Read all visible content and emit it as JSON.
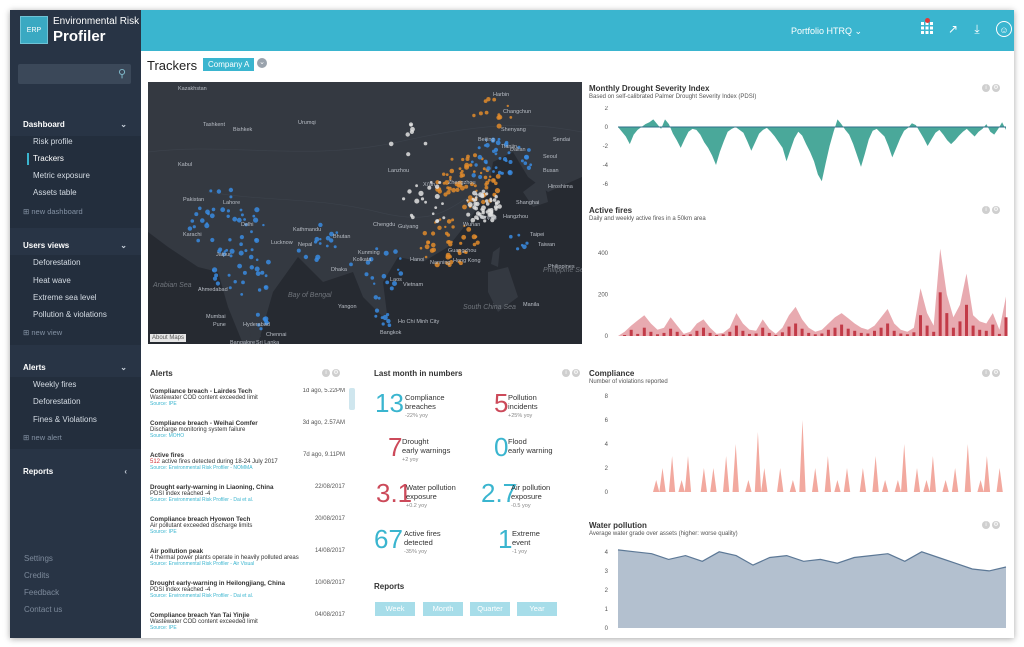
{
  "brand": {
    "logo": "ERP",
    "line1": "Environmental Risk",
    "line2": "Profiler"
  },
  "sidebar": {
    "dashboard": {
      "label": "Dashboard",
      "items": [
        "Risk profile",
        "Trackers",
        "Metric exposure",
        "Assets table"
      ],
      "add": "new dashboard"
    },
    "users_views": {
      "label": "Users views",
      "items": [
        "Deforestation",
        "Heat wave",
        "Extreme sea level",
        "Pollution & violations"
      ],
      "add": "new view"
    },
    "alerts": {
      "label": "Alerts",
      "items": [
        "Weekly fires",
        "Deforestation",
        "Fines & Violations"
      ],
      "add": "new alert"
    },
    "reports": {
      "label": "Reports"
    },
    "footer": [
      "Settings",
      "Credits",
      "Feedback",
      "Contact us"
    ]
  },
  "topbar": {
    "portfolio": "Portfolio HTRQ"
  },
  "page": {
    "title": "Trackers",
    "company": "Company A"
  },
  "map": {
    "about": "About Maps",
    "labels": [
      {
        "t": "Kazakhstan"
      },
      {
        "t": "Urumqi"
      },
      {
        "t": "Harbin"
      },
      {
        "t": "Changchun"
      },
      {
        "t": "Shenyang"
      },
      {
        "t": "Beijing"
      },
      {
        "t": "Tianjin"
      },
      {
        "t": "Seoul"
      },
      {
        "t": "Busan"
      },
      {
        "t": "Dalian"
      },
      {
        "t": "Xi'an"
      },
      {
        "t": "Zhengzhou"
      },
      {
        "t": "Lanzhou"
      },
      {
        "t": "Hiroshima"
      },
      {
        "t": "Nanjing"
      },
      {
        "t": "Shanghai"
      },
      {
        "t": "Chengdu"
      },
      {
        "t": "Hangzhou"
      },
      {
        "t": "Wuhan"
      },
      {
        "t": "Guiyang"
      },
      {
        "t": "Taipei"
      },
      {
        "t": "Kunming"
      },
      {
        "t": "Nanning"
      },
      {
        "t": "Guangzhou"
      },
      {
        "t": "Hong Kong"
      },
      {
        "t": "Taiwan"
      },
      {
        "t": "Hanoi"
      },
      {
        "t": "Karachi"
      },
      {
        "t": "Delhi"
      },
      {
        "t": "Lahore"
      },
      {
        "t": "Jaipur"
      },
      {
        "t": "Lucknow"
      },
      {
        "t": "Kathmandu"
      },
      {
        "t": "Ahmedabad"
      },
      {
        "t": "Kolkata"
      },
      {
        "t": "Mumbai"
      },
      {
        "t": "Hyderabad"
      },
      {
        "t": "Pune"
      },
      {
        "t": "Bangalore"
      },
      {
        "t": "Chennai"
      },
      {
        "t": "Yangon"
      },
      {
        "t": "Bangkok"
      },
      {
        "t": "Manila"
      },
      {
        "t": "Ho Chi Minh City"
      },
      {
        "t": "Sri Lanka"
      },
      {
        "t": "Philippines"
      },
      {
        "t": "Bhutan"
      },
      {
        "t": "Kabul"
      },
      {
        "t": "Tashkent"
      },
      {
        "t": "Bishkek"
      },
      {
        "t": "Vietnam"
      },
      {
        "t": "Laos"
      },
      {
        "t": "Dhaka"
      },
      {
        "t": "Pakistan"
      },
      {
        "t": "Nepal"
      },
      {
        "t": "Sendai"
      }
    ],
    "seas": [
      "Arabian Sea",
      "Bay of Bengal",
      "Philippine Sea",
      "South China Sea"
    ]
  },
  "drought": {
    "title": "Monthly Drought Severity Index",
    "subtitle": "Based on self-calibrated Palmer Drought Severity Index (PDSI)",
    "yticks": [
      "2",
      "0",
      "-2",
      "-4",
      "-6"
    ],
    "color": "#4aa89a"
  },
  "fires": {
    "title": "Active fires",
    "subtitle": "Daily and weekly active fires in a 50km area",
    "yticks": [
      "400",
      "200",
      "0"
    ],
    "color": "#d9727b"
  },
  "alerts_panel": {
    "title": "Alerts",
    "items": [
      {
        "title": "Compliance breach - Lairdes Tech",
        "date": "1d ago, 5.22PM",
        "msg": "Wastewater COD content exceeded limit",
        "src": "Source: IPE"
      },
      {
        "title": "Compliance breach - Weihai Comfer",
        "date": "3d ago, 2.57AM",
        "msg": "Discharge monitoring system failure",
        "src": "Source: MOHO"
      },
      {
        "title": "Active fires",
        "date": "7d ago, 9.11PM",
        "num": "512",
        "msg": " active fires detected during 18-24 July 2017",
        "src": "Source: Environmental Risk Profiler - NOMMA"
      },
      {
        "title": "Drought early-warning in Liaoning, China",
        "date": "22/08/2017",
        "msg": "PDSI index reached -4",
        "src": "Source: Environmental Risk Profiler - Dai et al."
      },
      {
        "title": "Compliance breach  Hyowon Tech",
        "date": "20/08/2017",
        "msg": "Air pollutant exceeded discharge limits",
        "src": "Source: IPE"
      },
      {
        "title": "Air pollution peak",
        "date": "14/08/2017",
        "msg": "4 thermal power plants operate in heavily polluted areas",
        "src": "Source: Environmental Risk Profiler - Air Visual"
      },
      {
        "title": "Drought early-warning in  Heilongjiang, China",
        "date": "10/08/2017",
        "msg": "PDSI index reached -4",
        "src": "Source: Environmental Risk Profiler - Dai et al."
      },
      {
        "title": "Compliance breach  Yan Tai Yinjie",
        "date": "04/08/2017",
        "msg": "Wastewater COD content exceeded limit",
        "src": "Source: IPE"
      }
    ]
  },
  "numbers": {
    "title": "Last month in numbers",
    "stats": [
      {
        "n": "13",
        "l1": "Compliance",
        "l2": "breaches",
        "y": "-22% yoy",
        "c": "teal"
      },
      {
        "n": "5",
        "l1": "Pollution",
        "l2": "incidents",
        "y": "+25% yoy",
        "c": "red"
      },
      {
        "n": "7",
        "l1": "Drought",
        "l2": "early warnings",
        "y": "+2 yoy",
        "c": "red"
      },
      {
        "n": "0",
        "l1": "Flood",
        "l2": "early warning",
        "y": "",
        "c": "teal"
      },
      {
        "n": "3.1",
        "l1": "Water pollution",
        "l2": "exposure",
        "y": "+0.2 yoy",
        "c": "red"
      },
      {
        "n": "2.7",
        "l1": "Air pollution",
        "l2": "exposure",
        "y": "-0.5 yoy",
        "c": "teal"
      },
      {
        "n": "67",
        "l1": "Active fires",
        "l2": "detected",
        "y": "-35% yoy",
        "c": "teal"
      },
      {
        "n": "1",
        "l1": "Extreme",
        "l2": "event",
        "y": "-1 yoy",
        "c": "teal"
      }
    ],
    "reports_title": "Reports",
    "buttons": [
      "Week",
      "Month",
      "Quarter",
      "Year"
    ]
  },
  "compliance": {
    "title": "Compliance",
    "subtitle": "Number of violations reported",
    "yticks": [
      "8",
      "6",
      "4",
      "2",
      "0"
    ],
    "color": "#f2a99f"
  },
  "water": {
    "title": "Water pollution",
    "subtitle": "Average water grade over assets (higher: worse quality)",
    "yticks": [
      "4",
      "3",
      "2",
      "1",
      "0"
    ],
    "color": "#5c7896"
  },
  "chart_data": [
    {
      "type": "area",
      "title": "Monthly Drought Severity Index",
      "ylim": [
        -6,
        2
      ],
      "values": [
        0,
        -0.5,
        -1,
        -1.8,
        -0.8,
        -0.3,
        0,
        0.3,
        0.5,
        0.8,
        0.3,
        -0.2,
        0.8,
        0.3,
        -0.7,
        -1.4,
        -2.2,
        -1.3,
        -0.5,
        -0.2,
        -0.3,
        -0.8,
        -1.6,
        -2.2,
        -3,
        -4,
        -2.6,
        -1.5,
        -0.5,
        -0.2,
        0,
        -0.3,
        -0.6,
        -1.5,
        -2.5,
        -1.6,
        -0.7,
        -0.3,
        -0.1,
        -0.5,
        -1,
        -1.6,
        -2.2,
        -3.6,
        -2.4,
        -1.2,
        -0.5,
        -0.9,
        -1.8,
        -2.6,
        -3.6,
        -5,
        -5.7,
        -3.8,
        -2,
        -0.5,
        0.8,
        0.3,
        -0.3,
        -0.8,
        -1.8,
        -3,
        -4.2,
        -2.8,
        -1.3,
        -0.4,
        -0.2,
        -0.6,
        -1,
        -2,
        -3.2,
        -2.2,
        -1.2,
        -0.4,
        -0.1,
        0.4,
        0.2,
        -0.5,
        -1.2,
        -2,
        -1.3,
        -0.6,
        -0.3,
        -0.8,
        -1.4,
        -1.8,
        -1.4,
        -0.9,
        -0.5,
        -0.2,
        -0.6,
        -1,
        -0.5,
        -0.2,
        0.3,
        -0.5,
        -0.8,
        -0.2,
        0.5,
        -0.3
      ]
    },
    {
      "type": "area",
      "title": "Active fires",
      "ylim": [
        0,
        500
      ],
      "series": [
        {
          "name": "weekly",
          "values": [
            0,
            20,
            50,
            75,
            100,
            60,
            30,
            40,
            90,
            50,
            10,
            20,
            60,
            80,
            40,
            10,
            15,
            40,
            110,
            60,
            30,
            25,
            80,
            35,
            10,
            40,
            100,
            140,
            80,
            40,
            20,
            30,
            60,
            90,
            110,
            85,
            60,
            40,
            30,
            50,
            90,
            130,
            60,
            30,
            20,
            40,
            230,
            110,
            50,
            420,
            200,
            90,
            150,
            300,
            100,
            70,
            60,
            110,
            30,
            190
          ]
        },
        {
          "name": "daily",
          "values": [
            0,
            5,
            30,
            10,
            40,
            20,
            8,
            15,
            35,
            20,
            5,
            8,
            25,
            40,
            15,
            5,
            8,
            20,
            50,
            25,
            10,
            12,
            40,
            15,
            5,
            18,
            45,
            60,
            35,
            15,
            8,
            12,
            30,
            40,
            55,
            35,
            25,
            15,
            12,
            25,
            40,
            60,
            25,
            12,
            8,
            18,
            100,
            50,
            20,
            210,
            110,
            40,
            70,
            150,
            50,
            30,
            25,
            55,
            10,
            90
          ]
        }
      ]
    },
    {
      "type": "area",
      "title": "Compliance",
      "ylim": [
        0,
        8
      ],
      "values": [
        0,
        0,
        0,
        0,
        0,
        0,
        0,
        0,
        0,
        0,
        0,
        0,
        1,
        0,
        2,
        0,
        0,
        3,
        0,
        0,
        1,
        0,
        3,
        0,
        0,
        0,
        0,
        2,
        0,
        0,
        2,
        0,
        0,
        0,
        3,
        0,
        0,
        4,
        0,
        0,
        0,
        1,
        0,
        0,
        5,
        0,
        2,
        0,
        0,
        0,
        0,
        2,
        0,
        0,
        0,
        1,
        0,
        0,
        6,
        0,
        0,
        0,
        2,
        0,
        0,
        0,
        3,
        0,
        0,
        1,
        0,
        0,
        2,
        0,
        0,
        0,
        0,
        2,
        0,
        0,
        0,
        3,
        0,
        0,
        1,
        0,
        0,
        0,
        1,
        0,
        4,
        0,
        0,
        0,
        2,
        0,
        0,
        1,
        0,
        3,
        0,
        0,
        0,
        1,
        0,
        0,
        2,
        0,
        0,
        0,
        4,
        0,
        0,
        0,
        1,
        0,
        3,
        0,
        0,
        0,
        2,
        0,
        0
      ]
    },
    {
      "type": "area",
      "title": "Water pollution",
      "ylim": [
        0,
        4
      ],
      "values": [
        4.1,
        4.0,
        3.9,
        3.6,
        3.8,
        3.5,
        4.0,
        3.8,
        3.3,
        3.7,
        3.8,
        3.5,
        3.6,
        3.4,
        3.7,
        3.8,
        3.9,
        3.5,
        4.0,
        3.7,
        3.4,
        3.1,
        3.0,
        3.2
      ]
    }
  ]
}
